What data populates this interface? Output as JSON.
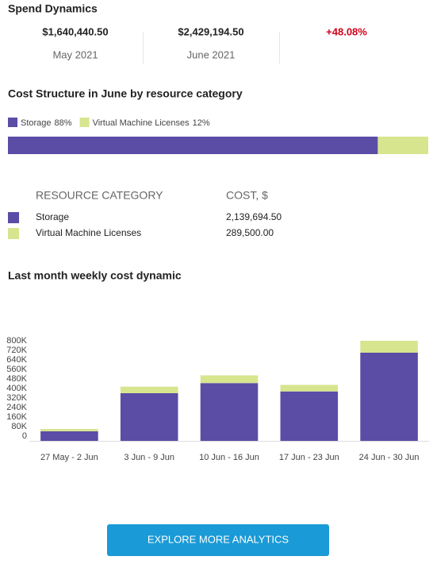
{
  "spend_dynamics": {
    "title": "Spend Dynamics",
    "items": [
      {
        "value": "$1,640,440.50",
        "label": "May 2021"
      },
      {
        "value": "$2,429,194.50",
        "label": "June 2021"
      },
      {
        "value": "+48.08%"
      }
    ]
  },
  "chart_data": [
    {
      "type": "stacked-hbar",
      "title": "Cost Structure in June by resource category",
      "series": [
        {
          "name": "Storage",
          "color": "#5b4ca6",
          "values": [
            88
          ],
          "value_labels": [
            "88%"
          ]
        },
        {
          "name": "Virtual Machine Licenses",
          "color": "#d7e58f",
          "values": [
            12
          ],
          "value_labels": [
            "12%"
          ]
        }
      ],
      "xlim": [
        0,
        100
      ]
    },
    {
      "type": "stacked-bar",
      "title": "Last month weekly cost dynamic",
      "categories": [
        "27 May - 2 Jun",
        "3 Jun - 9 Jun",
        "10 Jun - 16 Jun",
        "17 Jun - 23 Jun",
        "24 Jun - 30 Jun"
      ],
      "series": [
        {
          "color": "#5b4ca6",
          "values": [
            80000,
            400000,
            485000,
            415000,
            740000
          ]
        },
        {
          "color": "#d7e58f",
          "values": [
            20000,
            55000,
            65000,
            55000,
            100000
          ]
        }
      ],
      "ylim": [
        0,
        840000
      ],
      "yticks": [
        0,
        {
          "value": 80000,
          "label": "80K"
        },
        {
          "value": 160000,
          "label": "160K"
        },
        {
          "value": 240000,
          "label": "240K"
        },
        {
          "value": 320000,
          "label": "320K"
        },
        {
          "value": 400000,
          "label": "400K"
        },
        {
          "value": 480000,
          "label": "480K"
        },
        {
          "value": 560000,
          "label": "560K"
        },
        {
          "value": 640000,
          "label": "640K"
        },
        {
          "value": 720000,
          "label": "720K"
        },
        {
          "value": 800000,
          "label": "800K"
        }
      ],
      "grid": false
    }
  ],
  "table": {
    "headers": [
      "RESOURCE CATEGORY",
      "COST, $"
    ],
    "rows": [
      [
        "Storage",
        "2,139,694.50"
      ],
      [
        "Virtual Machine Licenses",
        "289,500.00"
      ]
    ]
  },
  "button": {
    "label": "EXPLORE MORE ANALYTICS"
  }
}
